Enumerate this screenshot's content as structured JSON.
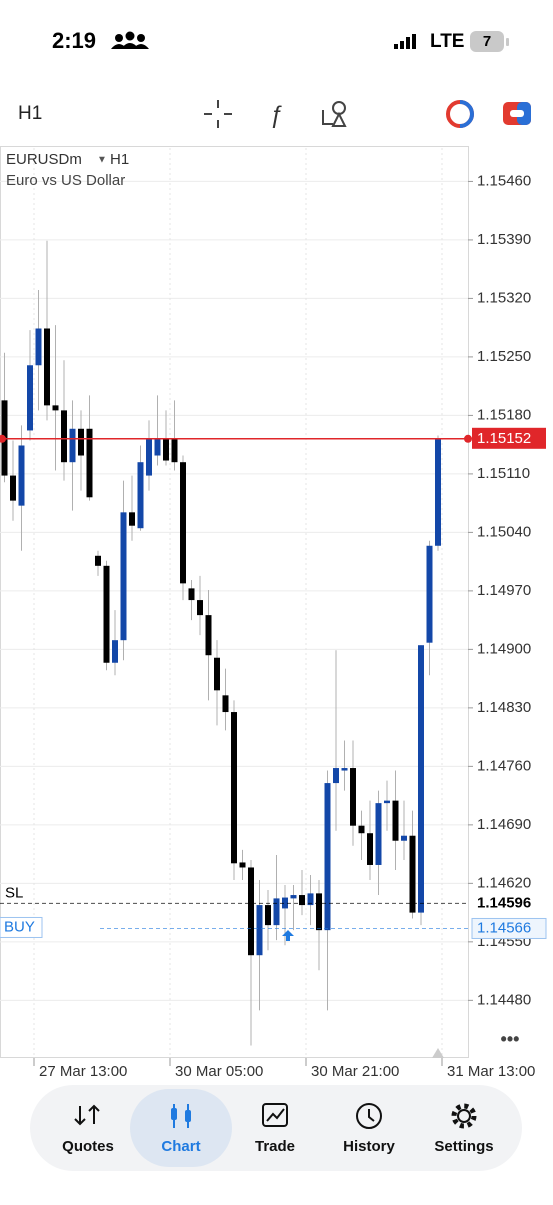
{
  "status_bar": {
    "time": "2:19",
    "network": "LTE",
    "battery": "7"
  },
  "toolbar": {
    "timeframe": "H1"
  },
  "chart_data": {
    "type": "candlestick",
    "symbol": "EURUSDm",
    "timeframe": "H1",
    "description": "Euro vs US Dollar",
    "up_color": "#1347a8",
    "down_color": "#000000",
    "grid": true,
    "ylim": [
      1.14411,
      1.155
    ],
    "yticks": [
      {
        "value": 1.1546,
        "label": "1.15460"
      },
      {
        "value": 1.1539,
        "label": "1.15390"
      },
      {
        "value": 1.1532,
        "label": "1.15320"
      },
      {
        "value": 1.1525,
        "label": "1.15250"
      },
      {
        "value": 1.1518,
        "label": "1.15180"
      },
      {
        "value": 1.1511,
        "label": "1.15110"
      },
      {
        "value": 1.1504,
        "label": "1.15040"
      },
      {
        "value": 1.1497,
        "label": "1.14970"
      },
      {
        "value": 1.149,
        "label": "1.14900"
      },
      {
        "value": 1.1483,
        "label": "1.14830"
      },
      {
        "value": 1.1476,
        "label": "1.14760"
      },
      {
        "value": 1.1469,
        "label": "1.14690"
      },
      {
        "value": 1.1462,
        "label": "1.14620"
      },
      {
        "value": 1.1455,
        "label": "1.14550"
      },
      {
        "value": 1.1448,
        "label": "1.14480"
      }
    ],
    "x_labels": [
      "27 Mar 13:00",
      "30 Mar 05:00",
      "30 Mar 21:00",
      "31 Mar 13:00"
    ],
    "candles": {
      "open": [
        1.15198,
        1.15108,
        1.15072,
        1.15162,
        1.1524,
        1.15284,
        1.15192,
        1.15186,
        1.15124,
        1.15164,
        1.15164,
        1.15012,
        1.15,
        1.14884,
        1.14911,
        1.15064,
        1.15045,
        1.15108,
        1.15132,
        1.15152,
        1.15152,
        1.15124,
        1.14973,
        1.14959,
        1.14941,
        1.1489,
        1.14845,
        1.14825,
        1.14645,
        1.14639,
        1.14534,
        1.14594,
        1.1457,
        1.1459,
        1.14602,
        1.14606,
        1.14594,
        1.14608,
        1.14564,
        1.1474,
        1.14755,
        1.14758,
        1.14689,
        1.1468,
        1.14642,
        1.14716,
        1.14719,
        1.14671,
        1.14677,
        1.14585,
        1.14908,
        1.15024
      ],
      "high": [
        1.15255,
        1.1515,
        1.15168,
        1.15282,
        1.1533,
        1.15389,
        1.15288,
        1.15246,
        1.15198,
        1.15186,
        1.15204,
        1.15018,
        1.15006,
        1.14947,
        1.15102,
        1.15108,
        1.15144,
        1.15174,
        1.15204,
        1.15186,
        1.15198,
        1.15132,
        1.14983,
        1.14988,
        1.14971,
        1.14911,
        1.14877,
        1.14839,
        1.1466,
        1.14648,
        1.14624,
        1.14612,
        1.14654,
        1.14618,
        1.14618,
        1.14636,
        1.1463,
        1.14624,
        1.14755,
        1.14899,
        1.14791,
        1.14791,
        1.14707,
        1.14719,
        1.14731,
        1.14743,
        1.14755,
        1.14719,
        1.14707,
        1.14905,
        1.1503,
        1.15156
      ],
      "low": [
        1.151,
        1.15054,
        1.15018,
        1.1515,
        1.15186,
        1.15174,
        1.15114,
        1.15102,
        1.15066,
        1.1509,
        1.15078,
        1.14988,
        1.14875,
        1.14869,
        1.14887,
        1.1503,
        1.15042,
        1.1509,
        1.1512,
        1.1512,
        1.15114,
        1.14959,
        1.14935,
        1.14917,
        1.14839,
        1.14809,
        1.14803,
        1.14624,
        1.14624,
        1.14426,
        1.14468,
        1.1454,
        1.14552,
        1.14546,
        1.14564,
        1.14582,
        1.1457,
        1.14516,
        1.14468,
        1.14683,
        1.14731,
        1.14665,
        1.14648,
        1.14624,
        1.14606,
        1.14683,
        1.14636,
        1.14648,
        1.14578,
        1.1457,
        1.14869,
        1.15018
      ],
      "close": [
        1.15108,
        1.15078,
        1.15144,
        1.1524,
        1.15284,
        1.15192,
        1.15186,
        1.15124,
        1.15164,
        1.15132,
        1.15082,
        1.15,
        1.14884,
        1.14911,
        1.15064,
        1.15048,
        1.15124,
        1.15152,
        1.15152,
        1.15126,
        1.15124,
        1.14979,
        1.14959,
        1.14941,
        1.14893,
        1.14851,
        1.14825,
        1.14644,
        1.14639,
        1.14534,
        1.14594,
        1.1457,
        1.14602,
        1.14603,
        1.14606,
        1.14594,
        1.14608,
        1.14564,
        1.1474,
        1.14758,
        1.14758,
        1.14689,
        1.1468,
        1.14642,
        1.14716,
        1.14719,
        1.14671,
        1.14677,
        1.14585,
        1.14905,
        1.15024,
        1.15152
      ]
    },
    "current_price": 1.15152,
    "levels": [
      {
        "name": "SL",
        "value": 1.14596,
        "color": "#000000"
      },
      {
        "name": "BUY",
        "value": 1.14566,
        "color": "#1f7ae0"
      }
    ]
  },
  "nav": {
    "items": [
      "Quotes",
      "Chart",
      "Trade",
      "History",
      "Settings"
    ],
    "active": 1
  }
}
